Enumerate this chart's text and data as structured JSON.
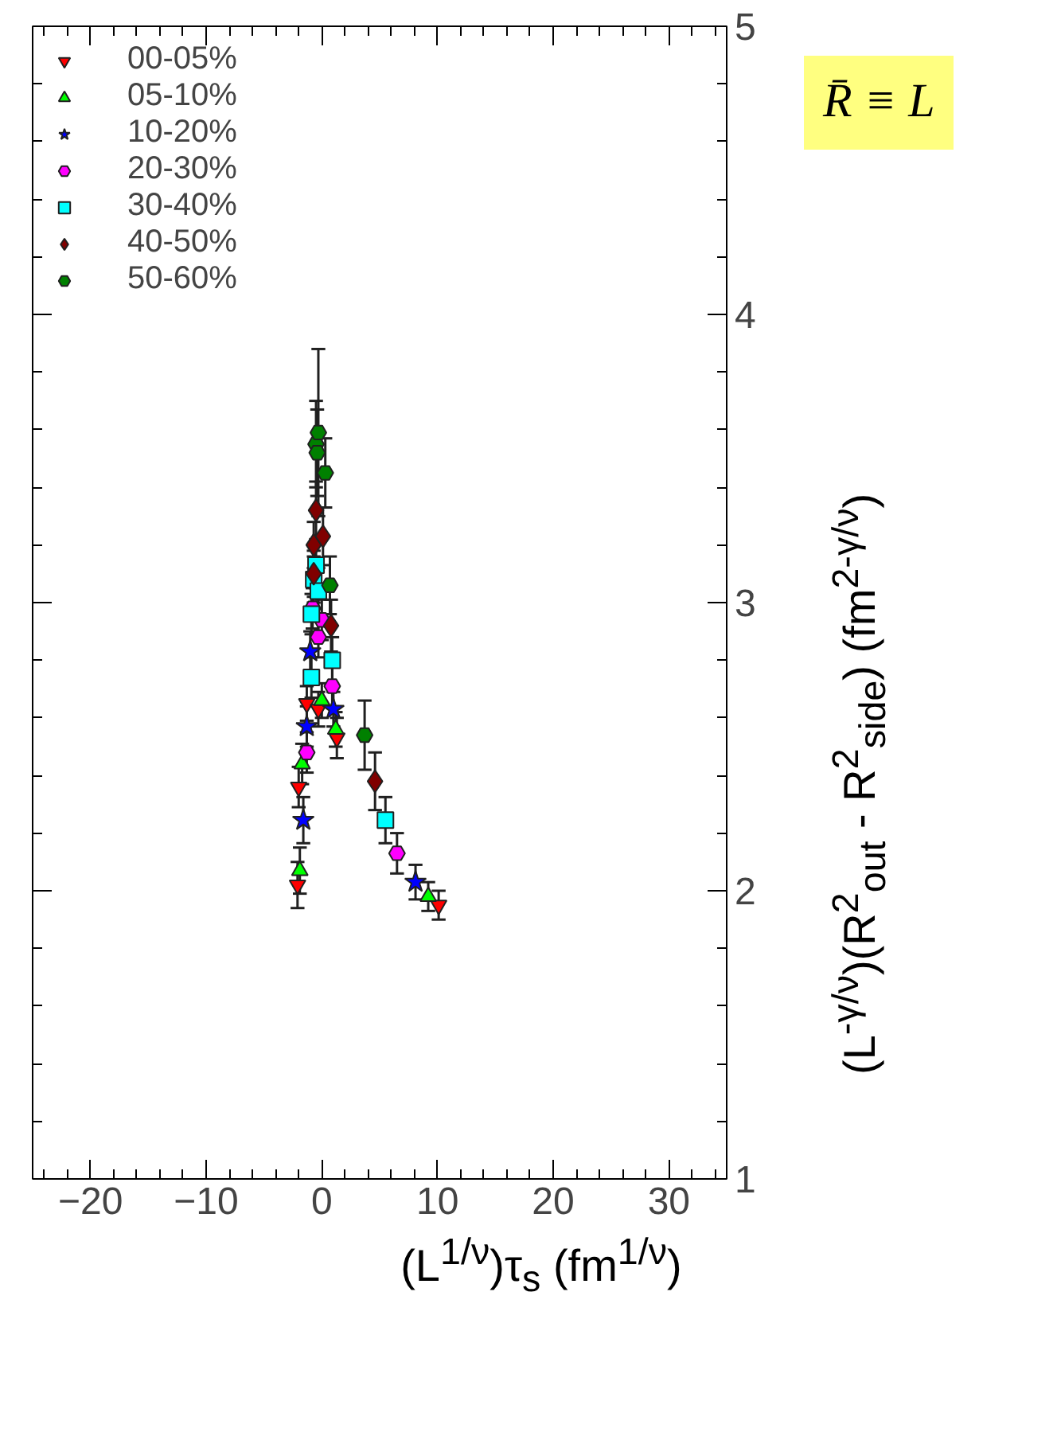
{
  "chart_data": {
    "type": "scatter",
    "xlabel": "(L$^{1/ν}$)τ$_{s}$ (fm$^{1/ν}$)",
    "ylabel": "(L$^{-γ/ν}$)(R$^{2}$$_{out}$ - R$^{2}$$_{side}$)  (fm$^{2-γ/ν}$)",
    "annotations": [
      "R̄ ≡ L"
    ],
    "xlim": [
      -25,
      35
    ],
    "xticks": [
      -20,
      -10,
      0,
      10,
      20,
      30
    ],
    "ylim": [
      1,
      5
    ],
    "yticks": [
      1,
      2,
      3,
      4,
      5
    ],
    "grid": false,
    "legend": "top left",
    "series": [
      {
        "name": "00-05%",
        "color": "#ff0000",
        "marker": "triangle_down",
        "x": [
          -2.1,
          -2.0,
          -1.3,
          -0.3,
          1.3,
          10.1
        ],
        "values": [
          2.02,
          2.36,
          2.65,
          2.63,
          2.53,
          1.95
        ],
        "errors": [
          0.08,
          0.07,
          0.06,
          0.06,
          0.07,
          0.05
        ]
      },
      {
        "name": "05-10%",
        "color": "#00ff00",
        "marker": "triangle",
        "x": [
          -1.9,
          -1.7,
          0,
          1.2,
          9.2
        ],
        "values": [
          2.07,
          2.44,
          2.66,
          2.56,
          1.98
        ],
        "errors": [
          0.08,
          0.07,
          0.06,
          0.06,
          0.05
        ]
      },
      {
        "name": "10-20%",
        "color": "#0000ff",
        "marker": "star",
        "x": [
          -1.6,
          -1.3,
          -1.0,
          1.0,
          8.1
        ],
        "values": [
          2.245,
          2.57,
          2.83,
          2.63,
          2.03
        ],
        "errors": [
          0.08,
          0.07,
          0.07,
          0.06,
          0.06
        ]
      },
      {
        "name": "20-30%",
        "color": "#ff00ff",
        "marker": "circle",
        "x": [
          -1.3,
          -0.8,
          -0.3,
          0,
          0.9,
          6.5
        ],
        "values": [
          2.48,
          2.98,
          2.88,
          2.94,
          2.71,
          2.13
        ],
        "errors": [
          0.07,
          0.07,
          0.07,
          0.07,
          0.07,
          0.07
        ]
      },
      {
        "name": "30-40%",
        "color": "#00ffff",
        "marker": "square",
        "x": [
          -0.9,
          -0.9,
          -0.7,
          -0.5,
          -0.3,
          0.9,
          5.5
        ],
        "values": [
          2.74,
          2.96,
          3.08,
          3.13,
          3.04,
          2.8,
          2.245
        ],
        "errors": [
          0.07,
          0.07,
          0.08,
          0.08,
          0.08,
          0.08,
          0.08
        ]
      },
      {
        "name": "40-50%",
        "color": "#800000",
        "marker": "diamond",
        "x": [
          -0.7,
          -0.7,
          -0.5,
          0.1,
          0.8,
          4.6
        ],
        "values": [
          3.1,
          3.2,
          3.32,
          3.23,
          2.92,
          2.38
        ],
        "errors": [
          0.08,
          0.08,
          0.1,
          0.1,
          0.09,
          0.1
        ]
      },
      {
        "name": "50-60%",
        "color": "#008000",
        "marker": "circle",
        "x": [
          -0.5,
          -0.4,
          -0.3,
          0.3,
          0.7,
          3.7
        ],
        "values": [
          3.55,
          3.52,
          3.59,
          3.45,
          3.06,
          2.54
        ],
        "errors": [
          0.15,
          0.15,
          0.29,
          0.12,
          0.1,
          0.12
        ]
      }
    ]
  }
}
